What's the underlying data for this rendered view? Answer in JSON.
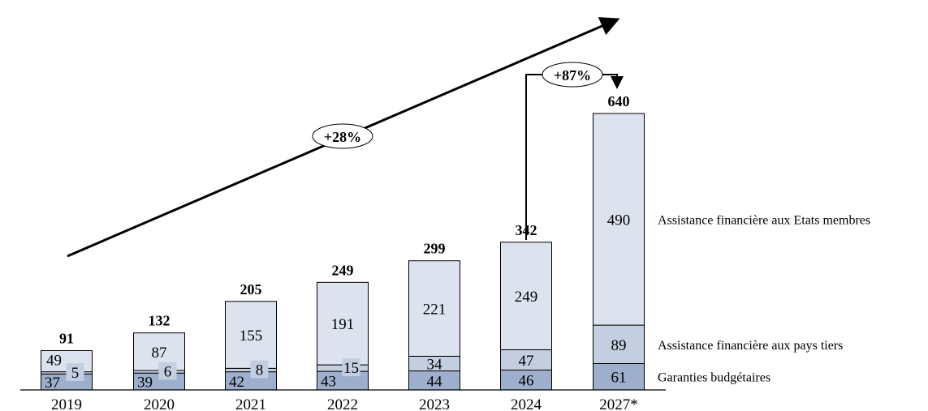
{
  "chart_data": {
    "type": "bar",
    "stacked": true,
    "categories": [
      "2019",
      "2020",
      "2021",
      "2022",
      "2023",
      "2024",
      "2027*"
    ],
    "series": [
      {
        "name": "Garanties budgétaires",
        "values": [
          37,
          39,
          42,
          43,
          44,
          46,
          61
        ],
        "color": "#9dafcc"
      },
      {
        "name": "Assistance financière aux pays tiers",
        "values": [
          5,
          6,
          8,
          15,
          34,
          47,
          89
        ],
        "color": "#c4cee1"
      },
      {
        "name": "Assistance financière aux Etats membres",
        "values": [
          49,
          87,
          155,
          191,
          221,
          249,
          490
        ],
        "color": "#dde3ee"
      }
    ],
    "totals": [
      91,
      132,
      205,
      249,
      299,
      342,
      640
    ],
    "ylim": [
      0,
      640
    ],
    "annotations": {
      "trend_label": "+28%",
      "jump_label": "+87%"
    },
    "legend_placement": "right, aligned to segments"
  }
}
